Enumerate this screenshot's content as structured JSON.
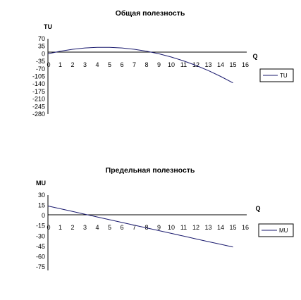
{
  "chart_data": [
    {
      "type": "line",
      "title": "Общая полезность",
      "ylabel": "TU",
      "xlabel": "Q",
      "x": [
        0,
        1,
        2,
        3,
        4,
        5,
        6,
        7,
        8,
        9,
        10,
        11,
        12,
        13,
        14,
        15
      ],
      "xtick_labels": [
        "0",
        "1",
        "2",
        "3",
        "4",
        "5",
        "6",
        "7",
        "8",
        "9",
        "10",
        "11",
        "12",
        "13",
        "14",
        "15",
        "16"
      ],
      "ytick_labels": [
        "70",
        "35",
        "0",
        "-35",
        "-70",
        "-105",
        "-140",
        "-175",
        "-210",
        "-245",
        "-280"
      ],
      "ylim": [
        -280,
        70
      ],
      "xlim": [
        0,
        16
      ],
      "grid": false,
      "legend": "right",
      "series": [
        {
          "name": "TU",
          "color": "#1a1a6e",
          "values": [
            0,
            12,
            21,
            27,
            30,
            30,
            27,
            21,
            12,
            0,
            -15,
            -33,
            -54,
            -78,
            -105,
            -135
          ]
        }
      ]
    },
    {
      "type": "line",
      "title": "Предельная полезность",
      "ylabel": "MU",
      "xlabel": "Q",
      "x": [
        0,
        1,
        2,
        3,
        4,
        5,
        6,
        7,
        8,
        9,
        10,
        11,
        12,
        13,
        14,
        15
      ],
      "xtick_labels": [
        "0",
        "1",
        "2",
        "3",
        "4",
        "5",
        "6",
        "7",
        "8",
        "9",
        "10",
        "11",
        "12",
        "13",
        "14",
        "15",
        "16"
      ],
      "ytick_labels": [
        "30",
        "15",
        "0",
        "-15",
        "-30",
        "-45",
        "-60",
        "-75"
      ],
      "ylim": [
        -75,
        30
      ],
      "xlim": [
        0,
        16
      ],
      "grid": false,
      "legend": "right",
      "series": [
        {
          "name": "MU",
          "color": "#1a1a6e",
          "values": [
            14,
            10,
            6,
            2,
            -2,
            -6,
            -10,
            -14,
            -18,
            -22,
            -26,
            -30,
            -34,
            -38,
            -42,
            -46
          ]
        }
      ]
    }
  ]
}
